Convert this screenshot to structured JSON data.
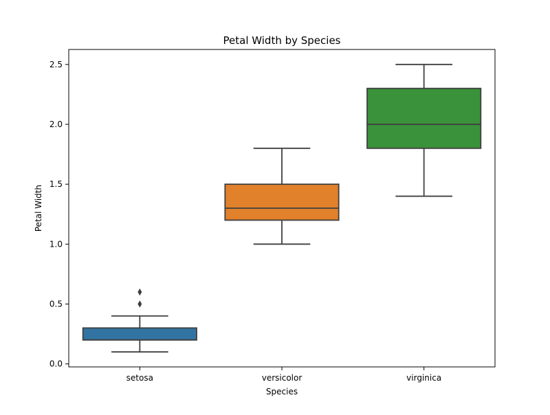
{
  "chart_data": {
    "type": "box",
    "title": "Petal Width by Species",
    "xlabel": "Species",
    "ylabel": "Petal Width",
    "categories": [
      "setosa",
      "versicolor",
      "virginica"
    ],
    "ylim": [
      -0.025,
      2.625
    ],
    "yticks": [
      0.0,
      0.5,
      1.0,
      1.5,
      2.0,
      2.5
    ],
    "ytick_labels": [
      "0.0",
      "0.5",
      "1.0",
      "1.5",
      "2.0",
      "2.5"
    ],
    "grid": false,
    "boxes": [
      {
        "category": "setosa",
        "whisker_low": 0.1,
        "q1": 0.2,
        "median": 0.2,
        "q3": 0.3,
        "whisker_high": 0.4,
        "outliers": [
          0.5,
          0.6
        ],
        "color": "#3274a1"
      },
      {
        "category": "versicolor",
        "whisker_low": 1.0,
        "q1": 1.2,
        "median": 1.3,
        "q3": 1.5,
        "whisker_high": 1.8,
        "outliers": [],
        "color": "#e1812c"
      },
      {
        "category": "virginica",
        "whisker_low": 1.4,
        "q1": 1.8,
        "median": 2.0,
        "q3": 2.3,
        "whisker_high": 2.5,
        "outliers": [],
        "color": "#3a923a"
      }
    ],
    "line_color": "#3f3f3f"
  }
}
